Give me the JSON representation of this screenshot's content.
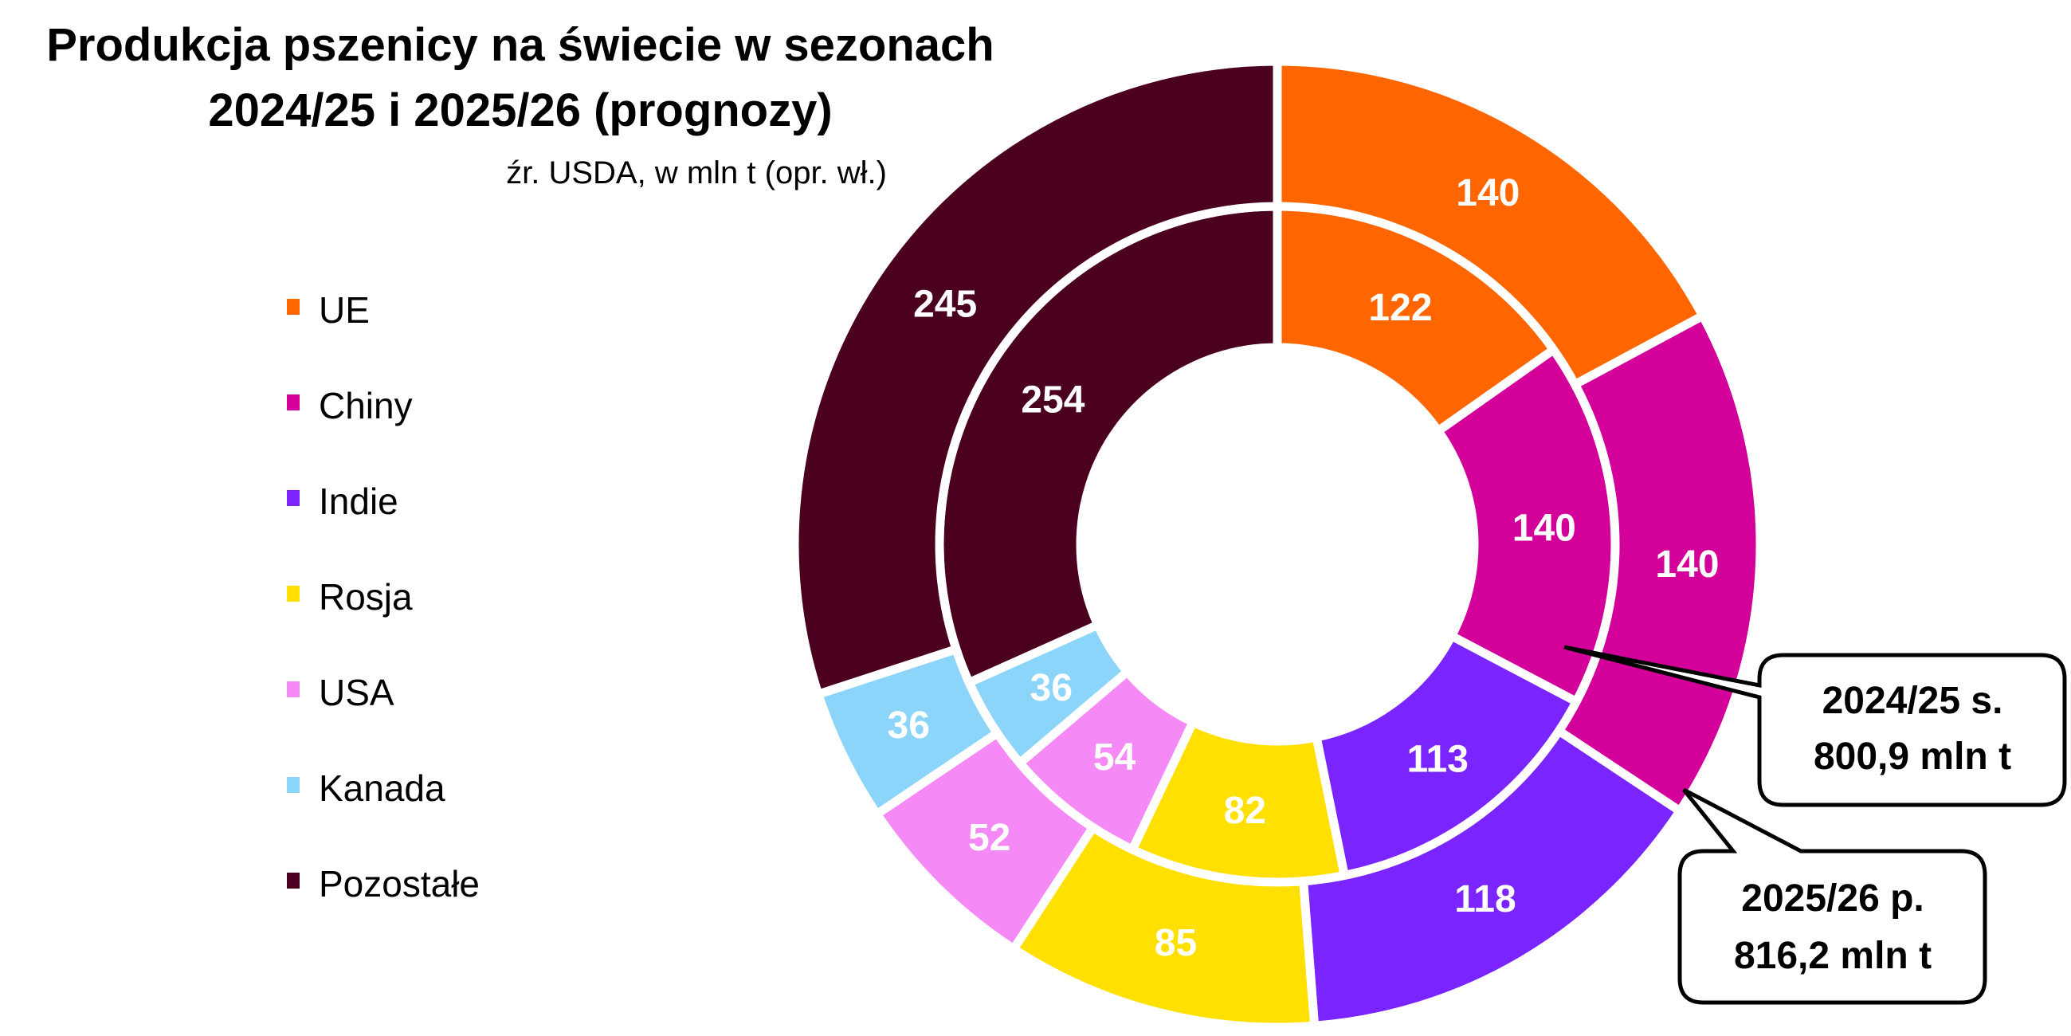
{
  "chart_data": {
    "type": "pie",
    "subtype": "double-donut",
    "title_lines": [
      "Produkcja pszenicy na świecie w sezonach",
      "2024/25 i 2025/26 (prognozy)"
    ],
    "subtitle": "źr. USDA, w mln t (opr. wł.)",
    "categories": [
      "UE",
      "Chiny",
      "Indie",
      "Rosja",
      "USA",
      "Kanada",
      "Pozostałe"
    ],
    "colors": [
      "#FF6600",
      "#D3009A",
      "#7A25FF",
      "#FFE000",
      "#F589F5",
      "#8BD4FA",
      "#4B0020"
    ],
    "series": [
      {
        "name": "2024/25",
        "ring": "inner",
        "values": [
          122,
          140,
          113,
          82,
          54,
          36,
          254
        ]
      },
      {
        "name": "2025/26",
        "ring": "outer",
        "values": [
          140,
          140,
          118,
          85,
          52,
          36,
          245
        ]
      }
    ],
    "legend_position": "left",
    "callouts": [
      {
        "lines": [
          "2024/25 s.",
          "800,9 mln t"
        ]
      },
      {
        "lines": [
          "2025/26 p.",
          "816,2 mln t"
        ]
      }
    ]
  }
}
